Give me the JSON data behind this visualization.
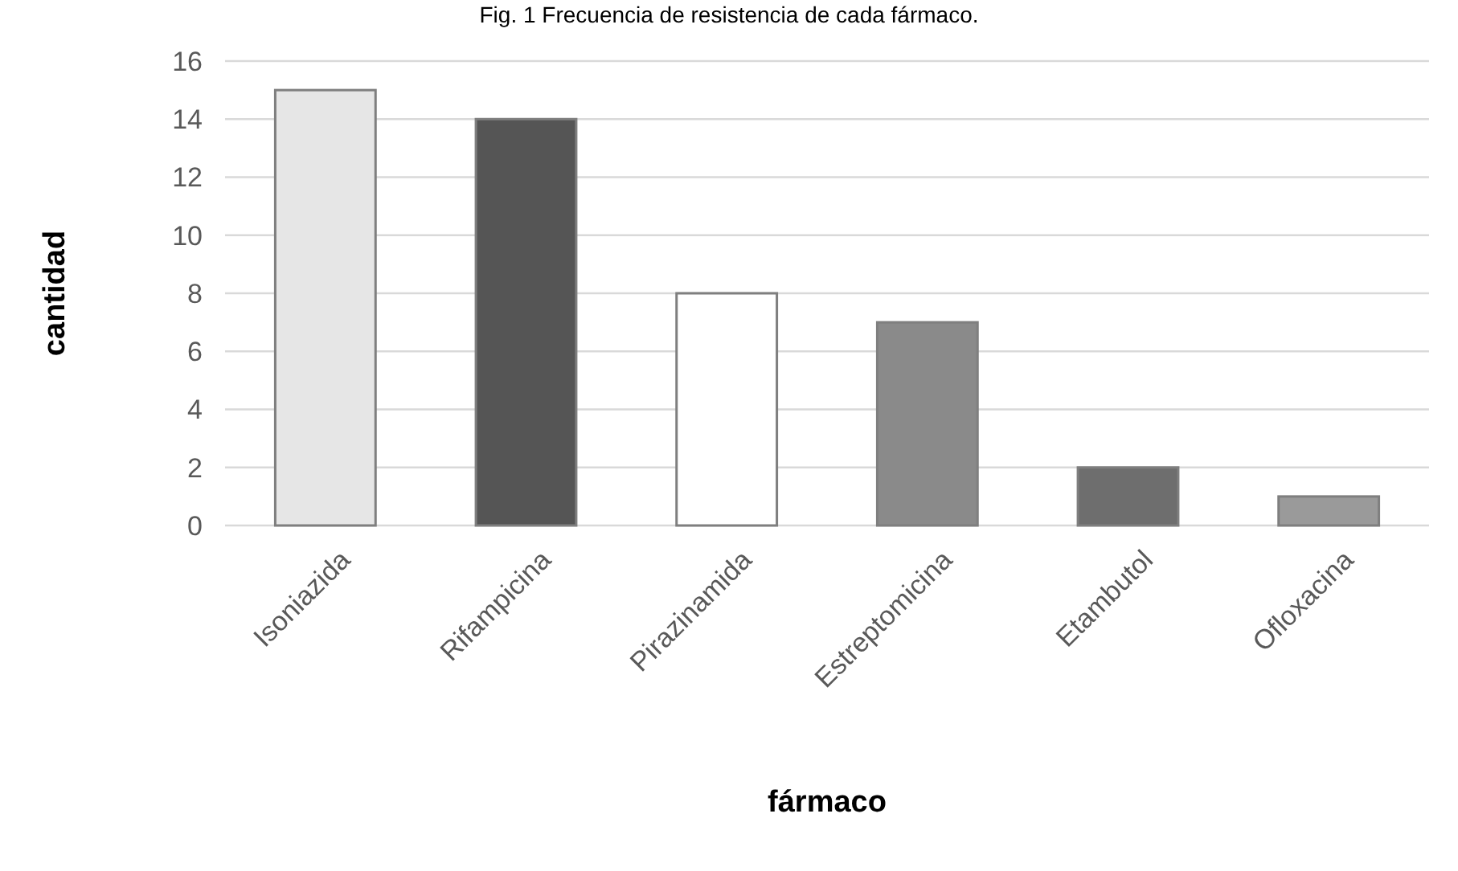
{
  "chart_data": {
    "type": "bar",
    "title": "Fig. 1 Frecuencia de resistencia de cada fármaco.",
    "xlabel": "fármaco",
    "ylabel": "cantidad",
    "categories": [
      "Isoniazida",
      "Rifampicina",
      "Pirazinamida",
      "Estreptomicina",
      "Etambutol",
      "Ofloxacina"
    ],
    "values": [
      15,
      14,
      8,
      7,
      2,
      1
    ],
    "colors": [
      "#e6e6e6",
      "#555555",
      "#ffffff",
      "#8a8a8a",
      "#6e6e6e",
      "#9a9a9a"
    ],
    "ylim": [
      0,
      16
    ],
    "yticks": [
      0,
      2,
      4,
      6,
      8,
      10,
      12,
      14,
      16
    ],
    "grid": "y"
  }
}
